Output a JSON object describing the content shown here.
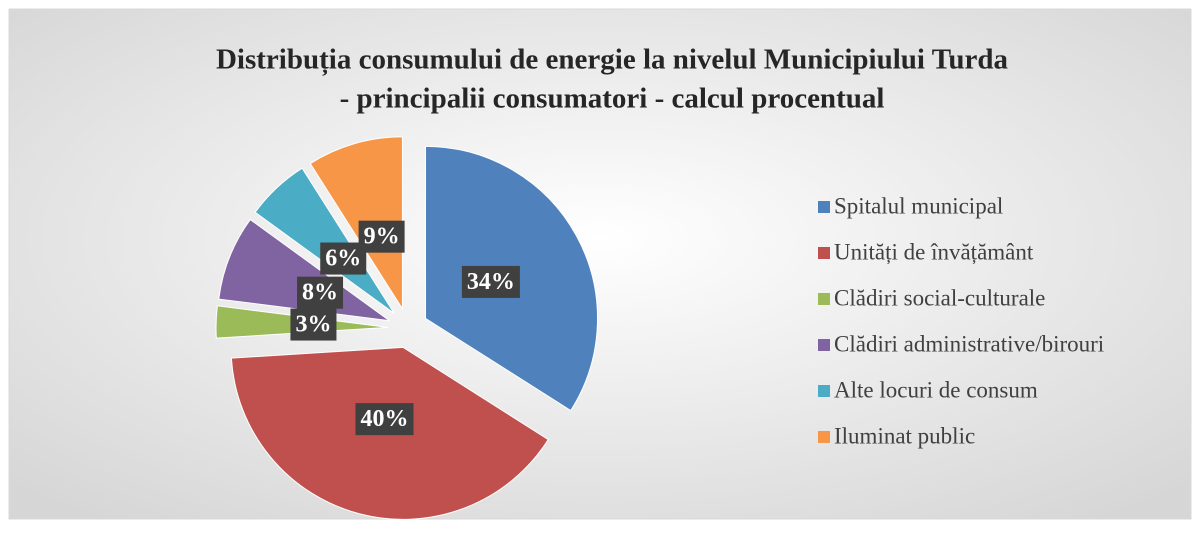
{
  "chart_data": {
    "type": "pie",
    "title": [
      "Distribuția consumului de energie la nivelul Municipiului Turda",
      "- principalii consumatori - calcul procentual"
    ],
    "categories": [
      "Spitalul municipal",
      "Unități de învățământ",
      "Clădiri social-culturale",
      "Clădiri administrative/birouri",
      "Alte locuri de consum",
      "Iluminat public"
    ],
    "values": [
      34,
      40,
      3,
      8,
      6,
      9
    ],
    "value_labels": [
      "34%",
      "40%",
      "3%",
      "8%",
      "6%",
      "9%"
    ],
    "colors": [
      "#4f81bd",
      "#c0504d",
      "#9bbb59",
      "#8064a2",
      "#4bacc6",
      "#f79646"
    ],
    "legend": "right"
  }
}
